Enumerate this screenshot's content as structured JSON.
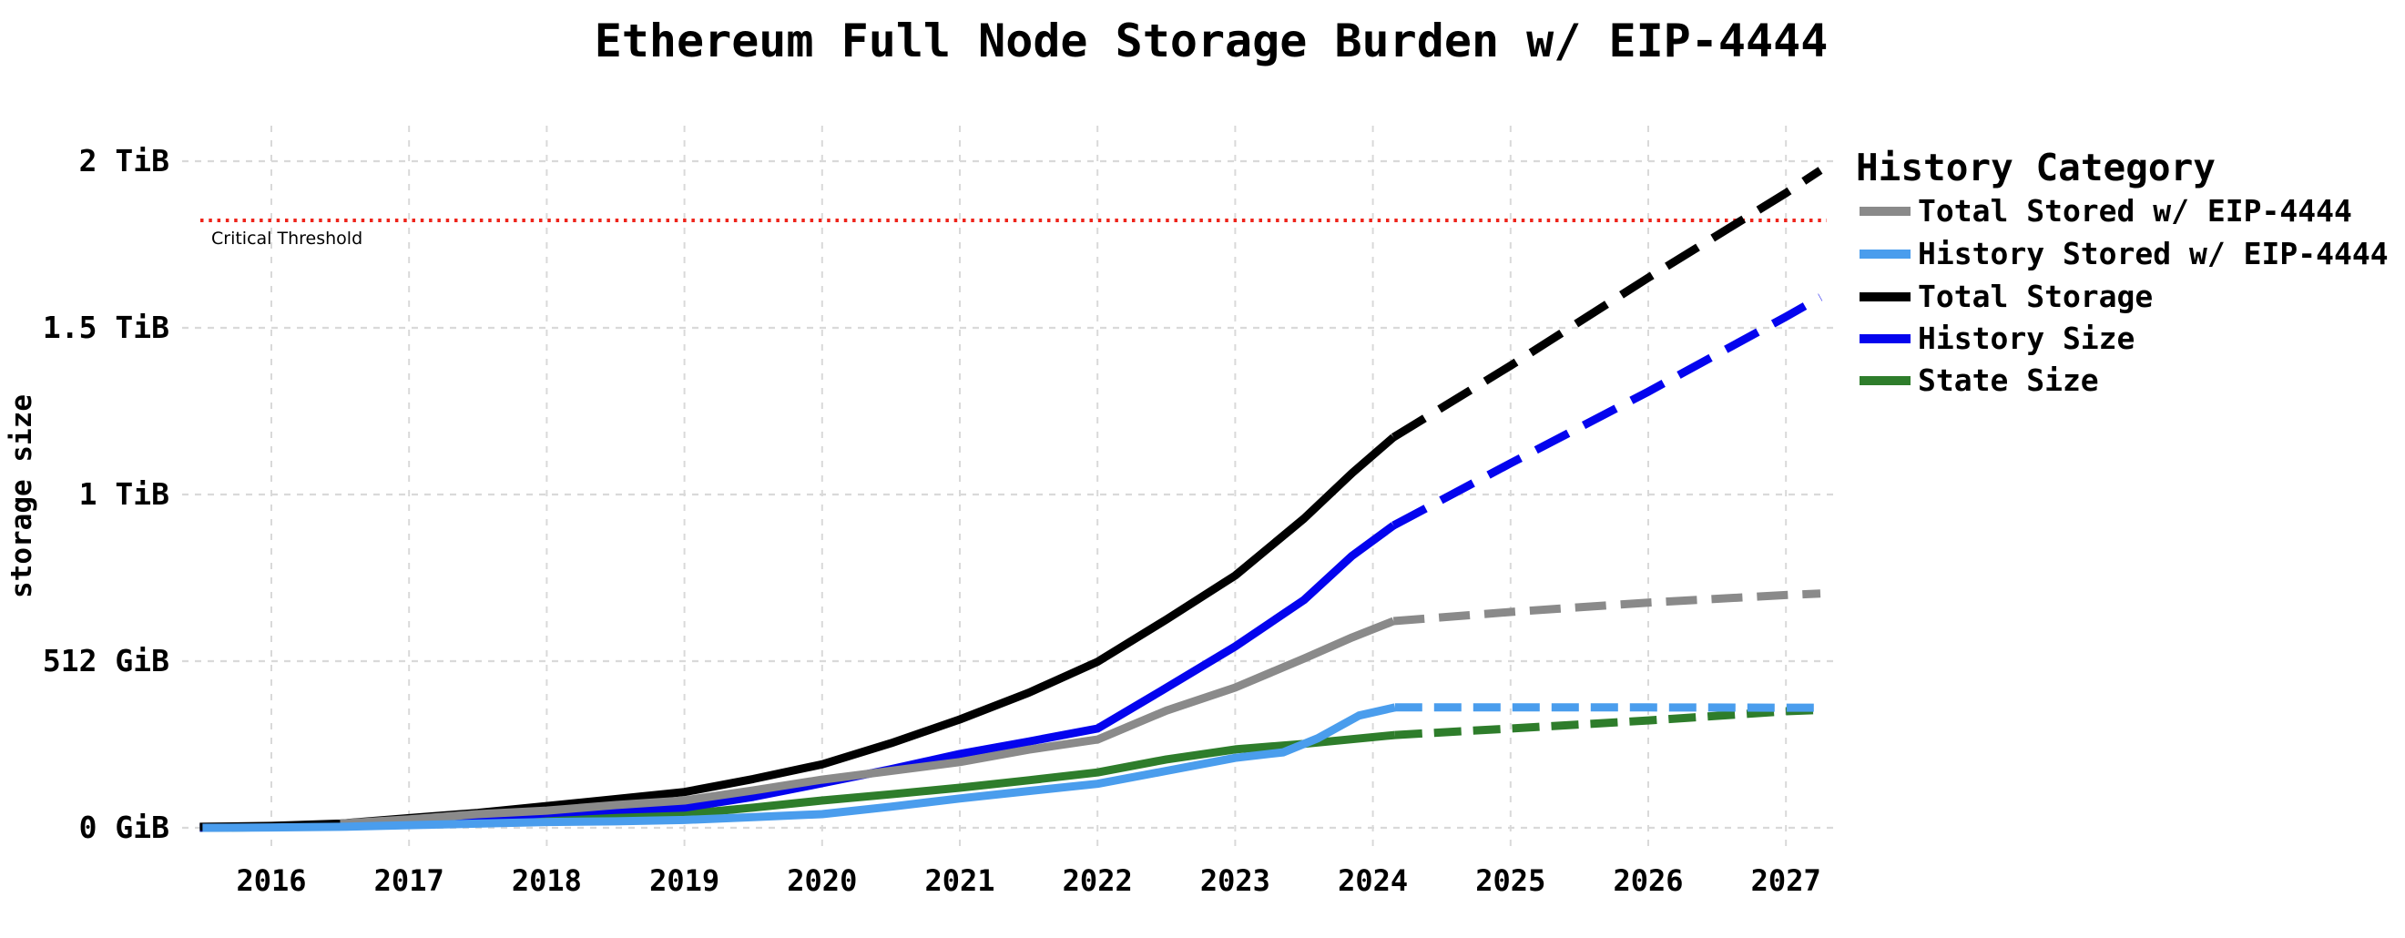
{
  "figure": {
    "title": "Ethereum Full Node Storage Burden w/ EIP-4444",
    "background": "#ffffff"
  },
  "chart_data": {
    "type": "line",
    "title": "Ethereum Full Node Storage Burden w/ EIP-4444",
    "xlabel": "",
    "ylabel": "storage size",
    "y_unit": "GiB",
    "x_unit": "year",
    "xlim": [
      2015.45,
      2027.45
    ],
    "ylim_gib": [
      0,
      2100
    ],
    "grid": true,
    "x_ticks": [
      2016,
      2017,
      2018,
      2019,
      2020,
      2021,
      2022,
      2023,
      2024,
      2025,
      2026,
      2027
    ],
    "y_ticks": [
      {
        "gib": 0,
        "label": "0 GiB"
      },
      {
        "gib": 512,
        "label": "512 GiB"
      },
      {
        "gib": 1024,
        "label": "1 TiB"
      },
      {
        "gib": 1536,
        "label": "1.5 TiB"
      },
      {
        "gib": 2048,
        "label": "2 TiB"
      }
    ],
    "threshold": {
      "label": "Critical Threshold",
      "value_gib": 1866,
      "color": "#ee241b",
      "style": "dotted"
    },
    "legend": {
      "title": "History Category",
      "position": "right",
      "order": [
        "Total Stored w/ EIP-4444",
        "History Stored w/ EIP-4444",
        "Total Storage",
        "History Size",
        "State Size"
      ]
    },
    "projection_note": "solid = historical (through ~2024.2), dashed = projected (to ~2027.2)",
    "series": [
      {
        "name": "Total Stored w/ EIP-4444",
        "color": "#8a8a8a",
        "z": 4,
        "dash": [
          34,
          16
        ],
        "solid_points": [
          [
            2016.5,
            13
          ],
          [
            2017,
            26
          ],
          [
            2017.5,
            42
          ],
          [
            2018,
            53
          ],
          [
            2018.5,
            70
          ],
          [
            2019,
            84
          ],
          [
            2019.5,
            115
          ],
          [
            2020,
            148
          ],
          [
            2020.5,
            175
          ],
          [
            2021,
            202
          ],
          [
            2021.5,
            240
          ],
          [
            2022,
            271
          ],
          [
            2022.5,
            360
          ],
          [
            2023,
            431
          ],
          [
            2023.5,
            520
          ],
          [
            2023.85,
            585
          ],
          [
            2024.15,
            635
          ]
        ],
        "projected_points": [
          [
            2024.15,
            635
          ],
          [
            2025,
            663
          ],
          [
            2026,
            692
          ],
          [
            2027,
            715
          ],
          [
            2027.25,
            720
          ]
        ]
      },
      {
        "name": "History Stored w/ EIP-4444",
        "color": "#4a9ded",
        "z": 5,
        "dash": [
          30,
          13
        ],
        "solid_points": [
          [
            2015.5,
            0
          ],
          [
            2016,
            1
          ],
          [
            2016.5,
            3
          ],
          [
            2017,
            8
          ],
          [
            2017.5,
            13
          ],
          [
            2018,
            18
          ],
          [
            2018.5,
            20
          ],
          [
            2019,
            24
          ],
          [
            2019.5,
            33
          ],
          [
            2020,
            42
          ],
          [
            2020.5,
            65
          ],
          [
            2021,
            90
          ],
          [
            2021.5,
            113
          ],
          [
            2022,
            135
          ],
          [
            2022.5,
            175
          ],
          [
            2023,
            215
          ],
          [
            2023.35,
            232
          ],
          [
            2023.6,
            275
          ],
          [
            2023.9,
            345
          ],
          [
            2024.16,
            370
          ]
        ],
        "projected_points": [
          [
            2024.16,
            370
          ],
          [
            2025,
            370
          ],
          [
            2026,
            370
          ],
          [
            2027,
            369
          ],
          [
            2027.25,
            369
          ]
        ]
      },
      {
        "name": "Total Storage",
        "color": "#000000",
        "z": 3,
        "dash": [
          40,
          19
        ],
        "solid_points": [
          [
            2015.48,
            3
          ],
          [
            2016,
            6
          ],
          [
            2016.5,
            13
          ],
          [
            2017,
            30
          ],
          [
            2017.5,
            46
          ],
          [
            2018,
            67
          ],
          [
            2018.5,
            88
          ],
          [
            2019,
            110
          ],
          [
            2019.5,
            150
          ],
          [
            2020,
            195
          ],
          [
            2020.5,
            260
          ],
          [
            2021,
            333
          ],
          [
            2021.5,
            415
          ],
          [
            2022,
            510
          ],
          [
            2022.5,
            640
          ],
          [
            2023,
            775
          ],
          [
            2023.5,
            950
          ],
          [
            2023.85,
            1090
          ],
          [
            2024.15,
            1200
          ]
        ],
        "projected_points": [
          [
            2024.15,
            1200
          ],
          [
            2025,
            1420
          ],
          [
            2026,
            1690
          ],
          [
            2027,
            1950
          ],
          [
            2027.25,
            2020
          ]
        ]
      },
      {
        "name": "History Size",
        "color": "#0404ee",
        "z": 2,
        "dash": [
          40,
          19
        ],
        "solid_points": [
          [
            2015.48,
            0.5
          ],
          [
            2016,
            3
          ],
          [
            2016.5,
            8
          ],
          [
            2017,
            15
          ],
          [
            2017.5,
            28
          ],
          [
            2018,
            45
          ],
          [
            2018.5,
            55
          ],
          [
            2019,
            62
          ],
          [
            2019.5,
            95
          ],
          [
            2020,
            137
          ],
          [
            2020.5,
            180
          ],
          [
            2021,
            227
          ],
          [
            2021.5,
            265
          ],
          [
            2022,
            305
          ],
          [
            2022.5,
            430
          ],
          [
            2023,
            557
          ],
          [
            2023.5,
            700
          ],
          [
            2023.85,
            836
          ],
          [
            2024.15,
            929
          ]
        ],
        "projected_points": [
          [
            2024.15,
            929
          ],
          [
            2025,
            1120
          ],
          [
            2026,
            1340
          ],
          [
            2027,
            1570
          ],
          [
            2027.25,
            1630
          ]
        ]
      },
      {
        "name": "State Size",
        "color": "#2e7d2b",
        "z": 1,
        "dash": [
          30,
          13
        ],
        "solid_points": [
          [
            2015.48,
            0
          ],
          [
            2016,
            2
          ],
          [
            2016.5,
            5
          ],
          [
            2017,
            10
          ],
          [
            2017.5,
            17
          ],
          [
            2018,
            25
          ],
          [
            2018.5,
            33
          ],
          [
            2019,
            42
          ],
          [
            2019.5,
            62
          ],
          [
            2020,
            84
          ],
          [
            2020.5,
            103
          ],
          [
            2021,
            123
          ],
          [
            2021.5,
            146
          ],
          [
            2022,
            170
          ],
          [
            2022.5,
            210
          ],
          [
            2023,
            241
          ],
          [
            2023.5,
            258
          ],
          [
            2024.16,
            285
          ]
        ],
        "projected_points": [
          [
            2024.16,
            285
          ],
          [
            2025,
            305
          ],
          [
            2026,
            330
          ],
          [
            2027,
            358
          ],
          [
            2027.25,
            362
          ]
        ]
      }
    ]
  },
  "style": {
    "grid_color": "#d9d9d9",
    "text_color": "#000000",
    "line_width": 9
  }
}
